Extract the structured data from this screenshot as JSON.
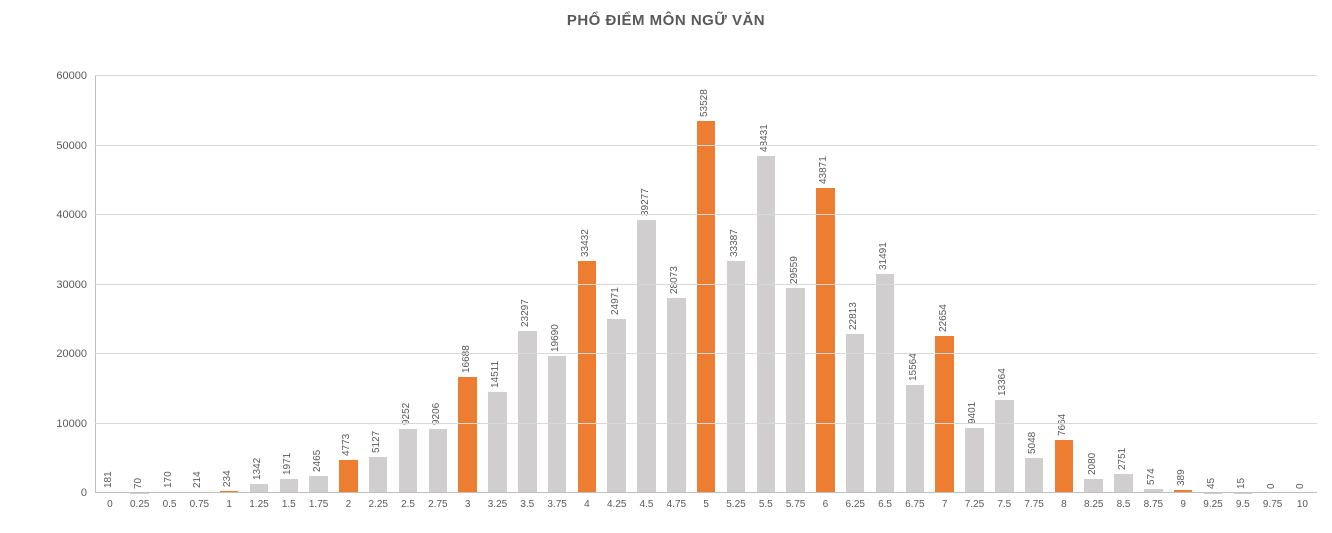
{
  "chart": {
    "type": "bar",
    "title": "PHỔ ĐIỂM MÔN NGỮ VĂN",
    "title_fontsize": 15,
    "title_color": "#595959",
    "background_color": "#ffffff",
    "grid_color": "#d9d9d9",
    "axis_line_color": "#bfbfbf",
    "tick_label_color": "#595959",
    "tick_fontsize": 11,
    "data_label_fontsize": 10,
    "bar_width_ratio": 0.62,
    "ylim": [
      0,
      60000
    ],
    "ytick_step": 10000,
    "yticks": [
      0,
      10000,
      20000,
      30000,
      40000,
      50000,
      60000
    ],
    "categories": [
      "0",
      "0.25",
      "0.5",
      "0.75",
      "1",
      "1.25",
      "1.5",
      "1.75",
      "2",
      "2.25",
      "2.5",
      "2.75",
      "3",
      "3.25",
      "3.5",
      "3.75",
      "4",
      "4.25",
      "4.5",
      "4.75",
      "5",
      "5.25",
      "5.5",
      "5.75",
      "6",
      "6.25",
      "6.5",
      "6.75",
      "7",
      "7.25",
      "7.5",
      "7.75",
      "8",
      "8.25",
      "8.5",
      "8.75",
      "9",
      "9.25",
      "9.5",
      "9.75",
      "10"
    ],
    "values": [
      181,
      70,
      170,
      214,
      234,
      1342,
      1971,
      2465,
      4773,
      5127,
      9252,
      9206,
      16688,
      14511,
      23297,
      19690,
      33432,
      24971,
      39277,
      28073,
      53528,
      33387,
      48431,
      29559,
      43871,
      22813,
      31491,
      15564,
      22654,
      9401,
      13364,
      5048,
      7664,
      2080,
      2751,
      574,
      389,
      45,
      15,
      0,
      0
    ],
    "default_bar_color": "#d0cece",
    "highlight_bar_color": "#ed7d31",
    "highlight_indices": [
      0,
      4,
      8,
      12,
      16,
      20,
      24,
      28,
      32,
      36,
      40
    ]
  }
}
